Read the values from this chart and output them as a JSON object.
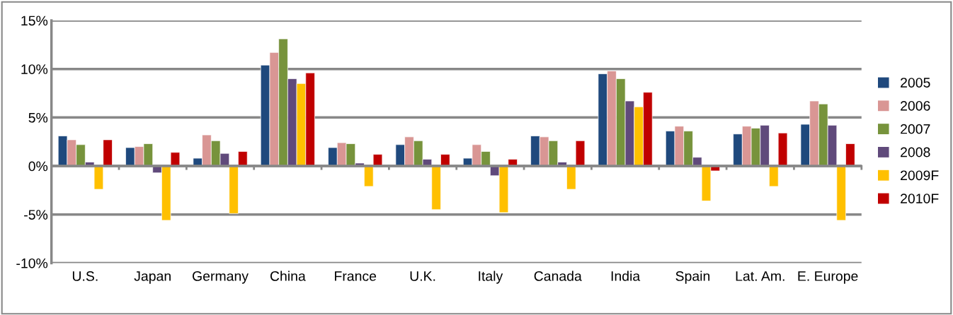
{
  "chart_data": {
    "type": "bar",
    "categories": [
      "U.S.",
      "Japan",
      "Germany",
      "China",
      "France",
      "U.K.",
      "Italy",
      "Canada",
      "India",
      "Spain",
      "Lat. Am.",
      "E. Europe"
    ],
    "series": [
      {
        "name": "2005",
        "color": "#1f497d",
        "values": [
          3.1,
          1.9,
          0.8,
          10.4,
          1.9,
          2.2,
          0.8,
          3.1,
          9.5,
          3.6,
          3.3,
          4.3
        ]
      },
      {
        "name": "2006",
        "color": "#d99694",
        "values": [
          2.7,
          2.0,
          3.2,
          11.7,
          2.4,
          3.0,
          2.2,
          3.0,
          9.8,
          4.1,
          4.1,
          6.7
        ]
      },
      {
        "name": "2007",
        "color": "#77933c",
        "values": [
          2.2,
          2.3,
          2.6,
          13.1,
          2.3,
          2.6,
          1.5,
          2.6,
          9.0,
          3.6,
          3.9,
          6.4
        ]
      },
      {
        "name": "2008",
        "color": "#604a7b",
        "values": [
          0.4,
          -0.7,
          1.3,
          9.0,
          0.3,
          0.7,
          -1.0,
          0.4,
          6.7,
          0.9,
          4.2,
          4.2
        ]
      },
      {
        "name": "2009F",
        "color": "#ffc000",
        "values": [
          -2.4,
          -5.6,
          -4.9,
          8.5,
          -2.1,
          -4.5,
          -4.8,
          -2.4,
          6.1,
          -3.6,
          -2.1,
          -5.6
        ]
      },
      {
        "name": "2010F",
        "color": "#c00000",
        "values": [
          2.7,
          1.4,
          1.5,
          9.6,
          1.2,
          1.2,
          0.7,
          2.6,
          7.6,
          -0.5,
          3.4,
          2.3
        ]
      }
    ],
    "ylim": [
      -10,
      15
    ],
    "yticks": [
      {
        "value": -10,
        "label": "-10%"
      },
      {
        "value": -5,
        "label": "-5%"
      },
      {
        "value": 0,
        "label": "0%"
      },
      {
        "value": 5,
        "label": "5%"
      },
      {
        "value": 10,
        "label": "10%"
      },
      {
        "value": 15,
        "label": "15%"
      }
    ],
    "grid": "y",
    "legend": "right"
  }
}
